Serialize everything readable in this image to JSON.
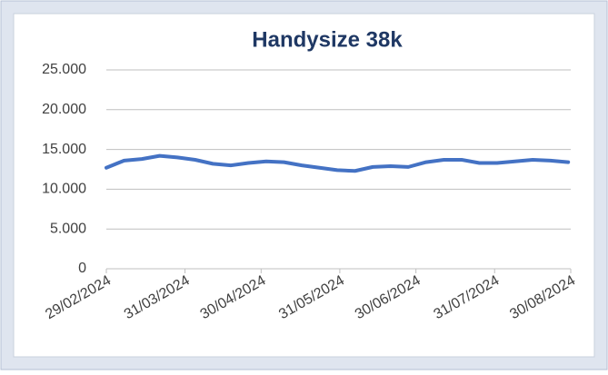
{
  "chart_data": {
    "type": "line",
    "title": "Handysize 38k",
    "x": [
      "2024-02-29",
      "2024-03-07",
      "2024-03-14",
      "2024-03-21",
      "2024-03-28",
      "2024-04-04",
      "2024-04-11",
      "2024-04-18",
      "2024-04-25",
      "2024-05-02",
      "2024-05-09",
      "2024-05-16",
      "2024-05-23",
      "2024-05-30",
      "2024-06-06",
      "2024-06-13",
      "2024-06-20",
      "2024-06-27",
      "2024-07-04",
      "2024-07-11",
      "2024-07-18",
      "2024-07-25",
      "2024-08-01",
      "2024-08-08",
      "2024-08-15",
      "2024-08-22",
      "2024-08-29"
    ],
    "series": [
      {
        "name": "Handysize 38k",
        "color": "#4472c4",
        "values": [
          12700,
          13600,
          13800,
          14200,
          14000,
          13700,
          13200,
          13000,
          13300,
          13500,
          13400,
          13000,
          12700,
          12400,
          12300,
          12800,
          12900,
          12800,
          13400,
          13700,
          13700,
          13300,
          13300,
          13500,
          13700,
          13600,
          13400
        ]
      }
    ],
    "xlim": [
      "2024-02-29",
      "2024-08-30"
    ],
    "xticks": [
      {
        "value": "2024-02-29",
        "label": "29/02/2024"
      },
      {
        "value": "2024-03-31",
        "label": "31/03/2024"
      },
      {
        "value": "2024-04-30",
        "label": "30/04/2024"
      },
      {
        "value": "2024-05-31",
        "label": "31/05/2024"
      },
      {
        "value": "2024-06-30",
        "label": "30/06/2024"
      },
      {
        "value": "2024-07-31",
        "label": "31/07/2024"
      },
      {
        "value": "2024-08-30",
        "label": "30/08/2024"
      }
    ],
    "ylim": [
      0,
      25000
    ],
    "yticks": [
      0,
      {
        "value": 5000,
        "label": "5.000"
      },
      {
        "value": 10000,
        "label": "10.000"
      },
      {
        "value": 15000,
        "label": "15.000"
      },
      {
        "value": 20000,
        "label": "20.000"
      },
      {
        "value": 25000,
        "label": "25.000"
      }
    ],
    "grid": true
  }
}
